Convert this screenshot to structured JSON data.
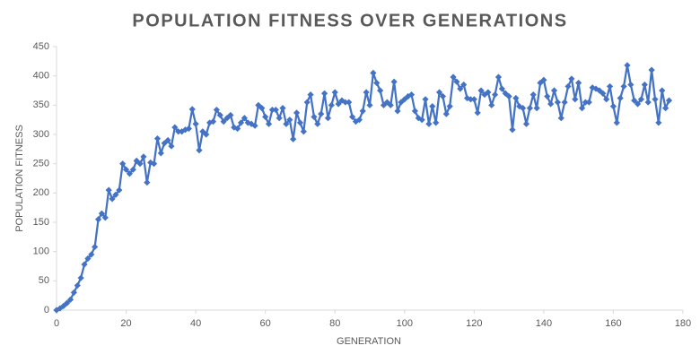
{
  "chart_data": {
    "type": "line",
    "title": "POPULATION FITNESS OVER GENERATIONS",
    "xlabel": "GENERATION",
    "ylabel": "POPULATION FITNESS",
    "x": [
      0,
      1,
      2,
      3,
      4,
      5,
      6,
      7,
      8,
      9,
      10,
      11,
      12,
      13,
      14,
      15,
      16,
      17,
      18,
      19,
      20,
      21,
      22,
      23,
      24,
      25,
      26,
      27,
      28,
      29,
      30,
      31,
      32,
      33,
      34,
      35,
      36,
      37,
      38,
      39,
      40,
      41,
      42,
      43,
      44,
      45,
      46,
      47,
      48,
      49,
      50,
      51,
      52,
      53,
      54,
      55,
      56,
      57,
      58,
      59,
      60,
      61,
      62,
      63,
      64,
      65,
      66,
      67,
      68,
      69,
      70,
      71,
      72,
      73,
      74,
      75,
      76,
      77,
      78,
      79,
      80,
      81,
      82,
      83,
      84,
      85,
      86,
      87,
      88,
      89,
      90,
      91,
      92,
      93,
      94,
      95,
      96,
      97,
      98,
      99,
      100,
      101,
      102,
      103,
      104,
      105,
      106,
      107,
      108,
      109,
      110,
      111,
      112,
      113,
      114,
      115,
      116,
      117,
      118,
      119,
      120,
      121,
      122,
      123,
      124,
      125,
      126,
      127,
      128,
      129,
      130,
      131,
      132,
      133,
      134,
      135,
      136,
      137,
      138,
      139,
      140,
      141,
      142,
      143,
      144,
      145,
      146,
      147,
      148,
      149,
      150,
      151,
      152,
      153,
      154,
      155,
      156,
      157,
      158,
      159,
      160,
      161,
      162,
      163,
      164,
      165,
      166,
      167,
      168,
      169,
      170,
      171,
      172,
      173,
      174,
      175,
      176
    ],
    "series": [
      {
        "name": "Population Fitness",
        "color": "#4472c4",
        "values": [
          0,
          3,
          7,
          12,
          18,
          30,
          42,
          55,
          78,
          88,
          95,
          108,
          155,
          165,
          158,
          205,
          190,
          197,
          205,
          250,
          240,
          233,
          240,
          255,
          250,
          262,
          218,
          252,
          250,
          293,
          268,
          285,
          290,
          280,
          312,
          305,
          305,
          308,
          310,
          343,
          318,
          273,
          305,
          300,
          320,
          322,
          342,
          333,
          322,
          328,
          333,
          312,
          310,
          320,
          328,
          320,
          318,
          315,
          350,
          345,
          330,
          318,
          342,
          342,
          328,
          345,
          318,
          325,
          292,
          337,
          320,
          305,
          355,
          368,
          330,
          318,
          335,
          370,
          328,
          350,
          372,
          352,
          358,
          355,
          355,
          330,
          322,
          325,
          340,
          372,
          350,
          405,
          388,
          375,
          350,
          355,
          350,
          390,
          340,
          355,
          360,
          365,
          368,
          340,
          328,
          325,
          360,
          318,
          348,
          320,
          372,
          365,
          335,
          348,
          398,
          390,
          378,
          385,
          362,
          360,
          360,
          337,
          375,
          368,
          372,
          350,
          368,
          398,
          378,
          370,
          365,
          308,
          362,
          348,
          345,
          318,
          345,
          368,
          345,
          388,
          393,
          365,
          352,
          375,
          355,
          328,
          355,
          382,
          395,
          360,
          388,
          345,
          355,
          355,
          380,
          378,
          375,
          370,
          360,
          382,
          348,
          320,
          362,
          382,
          418,
          385,
          358,
          352,
          360,
          385,
          355,
          410,
          360,
          320,
          375,
          345,
          358
        ]
      }
    ],
    "xlim": [
      0,
      180
    ],
    "xticks": [
      0,
      20,
      40,
      60,
      80,
      100,
      120,
      140,
      160,
      180
    ],
    "ylim": [
      0,
      450
    ],
    "yticks": [
      0,
      50,
      100,
      150,
      200,
      250,
      300,
      350,
      400,
      450
    ],
    "grid": false
  }
}
